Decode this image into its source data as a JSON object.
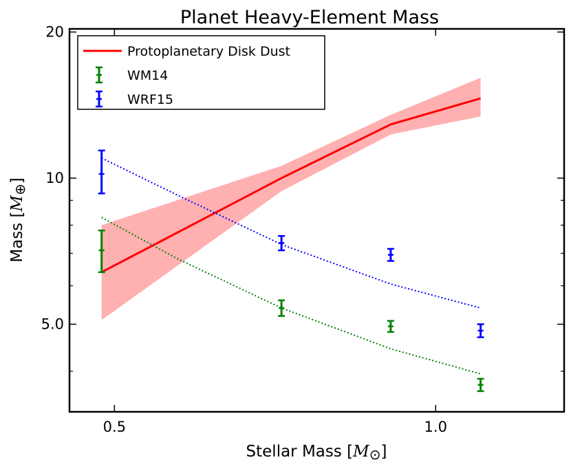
{
  "chart_data": {
    "type": "line",
    "title": "Planet Heavy-Element Mass",
    "xlabel": "Stellar Mass [",
    "xlabel_symbol": "M",
    "xlabel_suffix": "]",
    "ylabel": "Mass [",
    "ylabel_symbol": "M",
    "ylabel_suffix": "]",
    "xscale": "linear",
    "yscale": "log",
    "xlim": [
      0.43,
      1.2
    ],
    "ylim": [
      3.3,
      20.3
    ],
    "xticks": [
      0.5,
      1.0
    ],
    "xtick_labels": [
      "0.5",
      "1.0"
    ],
    "yticks": [
      5.0,
      10,
      20
    ],
    "ytick_labels": [
      "5.0",
      "10",
      "20"
    ],
    "y_minor_ticks": [
      4,
      6,
      7,
      8,
      9
    ],
    "grid": false,
    "legend_position": "top-left",
    "legend": [
      {
        "label": "Protoplanetary Disk Dust",
        "style": "line",
        "color": "#ff0000"
      },
      {
        "label": "WM14",
        "style": "errorbar",
        "color": "#008000"
      },
      {
        "label": "WRF15",
        "style": "errorbar",
        "color": "#0000ff"
      }
    ],
    "series": [
      {
        "name": "Protoplanetary Disk Dust",
        "kind": "line",
        "color": "#ff0000",
        "x": [
          0.48,
          0.76,
          0.93,
          1.07
        ],
        "y": [
          6.4,
          10.0,
          12.9,
          14.6
        ],
        "band_upper": [
          8.0,
          10.6,
          13.5,
          16.1
        ],
        "band_lower": [
          5.1,
          9.4,
          12.3,
          13.4
        ],
        "band_color": "#ffb0b0"
      },
      {
        "name": "WM14",
        "kind": "errorbar",
        "color": "#008000",
        "x": [
          0.48,
          0.76,
          0.93,
          1.07
        ],
        "y": [
          7.1,
          5.4,
          4.95,
          3.75
        ],
        "yerr_low": [
          6.4,
          5.2,
          4.82,
          3.64
        ],
        "yerr_high": [
          7.8,
          5.6,
          5.08,
          3.86
        ]
      },
      {
        "name": "WRF15",
        "kind": "errorbar",
        "color": "#0000ff",
        "x": [
          0.48,
          0.76,
          0.93,
          1.07
        ],
        "y": [
          10.2,
          7.35,
          6.95,
          4.85
        ],
        "yerr_low": [
          9.3,
          7.1,
          6.75,
          4.7
        ],
        "yerr_high": [
          11.4,
          7.6,
          7.15,
          5.0
        ]
      },
      {
        "name": "WM14 fit",
        "kind": "dotted",
        "color": "#008000",
        "x": [
          0.48,
          0.6,
          0.76,
          0.93,
          1.07
        ],
        "y": [
          8.3,
          6.8,
          5.4,
          4.45,
          3.95
        ]
      },
      {
        "name": "WRF15 fit",
        "kind": "dotted",
        "color": "#0000ff",
        "x": [
          0.48,
          0.6,
          0.76,
          0.93,
          1.07
        ],
        "y": [
          11.0,
          9.2,
          7.3,
          6.05,
          5.4
        ]
      }
    ]
  }
}
